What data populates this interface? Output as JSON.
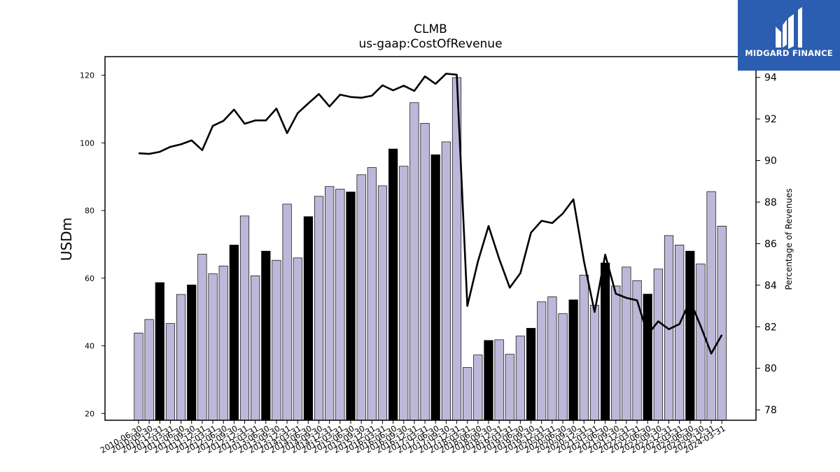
{
  "chart_data": {
    "type": "bar",
    "title": "CLMB",
    "subtitle": "us-gaap:CostOfRevenue",
    "ylabel": "USDm",
    "y2label": "Percentage of Revenues",
    "ylim": [
      18,
      125.5
    ],
    "y2lim": [
      77.5,
      95
    ],
    "yticks": [
      20,
      40,
      60,
      80,
      100,
      120
    ],
    "y2ticks": [
      78,
      80,
      82,
      84,
      86,
      88,
      90,
      92,
      94
    ],
    "categories": [
      "2010-06-30",
      "2010-09-30",
      "2010-12-31",
      "2011-03-31",
      "2011-06-30",
      "2011-09-30",
      "2011-12-31",
      "2012-03-31",
      "2012-06-30",
      "2012-09-30",
      "2012-12-31",
      "2013-03-31",
      "2013-06-30",
      "2013-09-30",
      "2013-12-31",
      "2014-03-31",
      "2014-06-30",
      "2014-09-30",
      "2014-12-31",
      "2015-03-31",
      "2015-06-30",
      "2015-09-30",
      "2015-12-31",
      "2016-03-31",
      "2016-06-30",
      "2016-09-30",
      "2016-12-31",
      "2017-03-31",
      "2017-06-30",
      "2017-09-30",
      "2017-12-31",
      "2018-03-31",
      "2018-06-30",
      "2018-09-30",
      "2018-12-31",
      "2019-03-31",
      "2019-06-30",
      "2019-09-30",
      "2019-12-31",
      "2020-03-31",
      "2020-06-30",
      "2020-09-30",
      "2020-12-31",
      "2021-03-31",
      "2021-06-30",
      "2021-09-30",
      "2021-12-31",
      "2022-03-31",
      "2022-06-30",
      "2022-09-30",
      "2022-12-31",
      "2023-03-31",
      "2023-06-30",
      "2023-09-30",
      "2023-12-31",
      "2024-03-31"
    ],
    "series": [
      {
        "type": "bar",
        "axis": "left",
        "values": [
          43.8,
          47.8,
          58.7,
          46.6,
          55.2,
          58.0,
          67.1,
          61.3,
          63.6,
          69.8,
          78.4,
          60.7,
          68.0,
          65.3,
          81.9,
          66.0,
          78.2,
          84.2,
          87.1,
          86.3,
          85.5,
          90.6,
          92.7,
          87.3,
          98.2,
          93.1,
          111.9,
          105.8,
          96.5,
          100.3,
          119.3,
          33.6,
          37.3,
          41.6,
          41.8,
          37.5,
          42.9,
          45.2,
          53.0,
          54.5,
          49.5,
          53.6,
          60.9,
          52.0,
          64.5,
          57.7,
          63.3,
          59.3,
          55.3,
          62.7,
          72.6,
          69.8,
          68.0,
          64.2,
          85.6,
          75.4
        ],
        "highlight": [
          false,
          false,
          true,
          false,
          false,
          true,
          false,
          false,
          false,
          true,
          false,
          false,
          true,
          false,
          false,
          false,
          true,
          false,
          false,
          false,
          true,
          false,
          false,
          false,
          true,
          false,
          false,
          false,
          true,
          false,
          false,
          false,
          false,
          true,
          false,
          false,
          false,
          true,
          false,
          false,
          false,
          true,
          false,
          false,
          true,
          false,
          false,
          false,
          true,
          false,
          false,
          false,
          true,
          false,
          false,
          false
        ],
        "colors": {
          "normal": "#bdb8d9",
          "highlight": "#000000"
        }
      },
      {
        "type": "line",
        "axis": "right",
        "color": "#000000",
        "values": [
          90.35,
          90.32,
          90.42,
          90.66,
          90.78,
          90.97,
          90.5,
          91.67,
          91.91,
          92.45,
          91.77,
          91.93,
          91.93,
          92.5,
          91.32,
          92.28,
          92.75,
          93.2,
          92.6,
          93.17,
          93.06,
          93.02,
          93.12,
          93.62,
          93.38,
          93.6,
          93.35,
          94.05,
          93.69,
          94.18,
          94.13,
          83.0,
          85.15,
          86.85,
          85.27,
          83.88,
          84.58,
          86.53,
          87.1,
          86.99,
          87.45,
          88.13,
          85.14,
          82.71,
          85.47,
          83.59,
          83.39,
          83.27,
          81.62,
          82.26,
          81.88,
          82.13,
          83.26,
          82.03,
          80.71,
          81.61
        ]
      }
    ]
  },
  "logo": {
    "text": "MIDGARD FINANCE"
  }
}
